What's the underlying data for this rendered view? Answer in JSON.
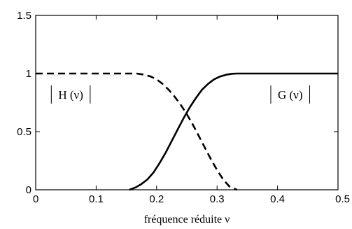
{
  "chart_data": {
    "type": "line",
    "title": "",
    "xlabel": "fréquence réduite  ν",
    "ylabel": "",
    "xlim": [
      0,
      0.5
    ],
    "ylim": [
      0,
      1.5
    ],
    "xticks": [
      "0",
      "0.1",
      "0.2",
      "0.3",
      "0.4",
      "0.5"
    ],
    "yticks": [
      "0",
      "0.5",
      "1",
      "1.5"
    ],
    "grid": false,
    "legend": "none",
    "series": [
      {
        "line_style": "dashed",
        "color": "#000000",
        "x": [
          0,
          0.05,
          0.1,
          0.15,
          0.167,
          0.18,
          0.19,
          0.2,
          0.21,
          0.22,
          0.23,
          0.24,
          0.25,
          0.26,
          0.27,
          0.28,
          0.29,
          0.3,
          0.31,
          0.32,
          0.333
        ],
        "y": [
          1,
          1,
          1,
          1,
          1,
          0.99,
          0.975,
          0.95,
          0.91,
          0.86,
          0.8,
          0.73,
          0.65,
          0.56,
          0.46,
          0.36,
          0.26,
          0.17,
          0.09,
          0.03,
          0
        ]
      },
      {
        "line_style": "solid",
        "color": "#000000",
        "x": [
          0.155,
          0.165,
          0.175,
          0.185,
          0.195,
          0.205,
          0.215,
          0.225,
          0.235,
          0.245,
          0.255,
          0.265,
          0.275,
          0.285,
          0.295,
          0.305,
          0.315,
          0.325,
          0.333,
          0.4,
          0.5
        ],
        "y": [
          0,
          0.02,
          0.05,
          0.09,
          0.15,
          0.23,
          0.32,
          0.42,
          0.52,
          0.62,
          0.71,
          0.79,
          0.86,
          0.91,
          0.95,
          0.975,
          0.99,
          0.998,
          1,
          1,
          1
        ]
      }
    ],
    "annotations": [
      {
        "text": "H (ν)",
        "x": 0.058,
        "y": 0.82
      },
      {
        "text": "G (ν)",
        "x": 0.421,
        "y": 0.82
      }
    ]
  }
}
